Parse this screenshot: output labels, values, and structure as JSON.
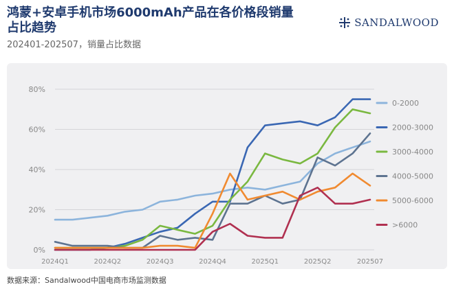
{
  "title": "鸿蒙+安卓手机市场6000mAh产品在各价格段销量占比趋势",
  "subtitle": "202401-202507，销量占比数据",
  "logo_text": "SANDALWOOD",
  "source": "数据来源：Sandalwood中国电商市场监测数据",
  "chart_data": {
    "type": "line",
    "title": "鸿蒙+安卓手机市场6000mAh产品在各价格段销量占比趋势",
    "subtitle": "202401-202507，销量占比数据",
    "xlabel": "",
    "ylabel": "",
    "x": [
      "2024Q1",
      "",
      "",
      "2024Q2",
      "",
      "",
      "2024Q3",
      "",
      "",
      "2024Q4",
      "",
      "",
      "2025Q1",
      "",
      "",
      "2025Q2",
      "",
      "",
      "202507"
    ],
    "xtick_labels": [
      "2024Q1",
      "2024Q2",
      "2024Q3",
      "2024Q4",
      "2025Q1",
      "2025Q2",
      "202507"
    ],
    "xtick_index": [
      0,
      3,
      6,
      9,
      12,
      15,
      18
    ],
    "ylim": [
      0,
      80
    ],
    "yticks": [
      0,
      20,
      40,
      60,
      80
    ],
    "ytick_labels": [
      "0%",
      "20%",
      "40%",
      "60%",
      "80%"
    ],
    "grid": true,
    "legend_position": "right",
    "series": [
      {
        "name": "0-2000",
        "color": "#8cb4dc",
        "values": [
          15,
          15,
          16,
          17,
          19,
          20,
          24,
          25,
          27,
          28,
          30,
          31,
          30,
          32,
          34,
          43,
          48,
          51,
          54
        ]
      },
      {
        "name": "2000-3000",
        "color": "#3a67b3",
        "values": [
          0,
          0,
          0,
          1,
          3,
          6,
          9,
          11,
          18,
          24,
          24,
          51,
          62,
          63,
          64,
          62,
          66,
          75,
          75
        ]
      },
      {
        "name": "3000-4000",
        "color": "#7ab840",
        "values": [
          1,
          1,
          1,
          1,
          2,
          5,
          12,
          10,
          8,
          12,
          25,
          34,
          48,
          45,
          43,
          48,
          61,
          70,
          68
        ]
      },
      {
        "name": "4000-5000",
        "color": "#5d7390",
        "values": [
          4,
          2,
          2,
          2,
          1,
          1,
          7,
          5,
          6,
          5,
          23,
          23,
          27,
          23,
          25,
          46,
          42,
          48,
          58
        ]
      },
      {
        "name": "5000-6000",
        "color": "#f08a30",
        "values": [
          1,
          1,
          1,
          1,
          1,
          1,
          2,
          2,
          1,
          18,
          38,
          25,
          27,
          29,
          25,
          29,
          31,
          38,
          32
        ]
      },
      {
        "name": ">6000",
        "color": "#b03050",
        "values": [
          0,
          0,
          0,
          0,
          0,
          0,
          0,
          0,
          0,
          9,
          13,
          7,
          6,
          6,
          27,
          31,
          23,
          23,
          25
        ]
      }
    ]
  }
}
